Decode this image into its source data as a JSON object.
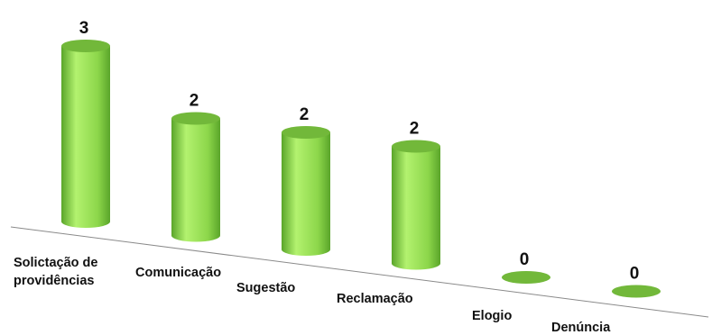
{
  "chart_data": {
    "type": "bar",
    "title": "",
    "xlabel": "",
    "ylabel": "",
    "ylim": [
      0,
      3
    ],
    "grid": false,
    "legend": "none",
    "categories": [
      "Solictação de providências",
      "Comunicação",
      "Sugestão",
      "Reclamação",
      "Elogio",
      "Denúncia"
    ],
    "category_lines": [
      [
        "Solictação de",
        "providências"
      ],
      [
        "Comunicação"
      ],
      [
        "Sugestão"
      ],
      [
        "Reclamação"
      ],
      [
        "Elogio"
      ],
      [
        "Denúncia"
      ]
    ],
    "values": [
      3,
      2,
      2,
      2,
      0,
      0
    ],
    "value_labels": [
      "3",
      "2",
      "2",
      "2",
      "0",
      "0"
    ],
    "colors": {
      "bar_body": "#8cd64a",
      "bar_highlight": "#b3f26f",
      "bar_shadow": "#5aa52a",
      "bar_top": "#72b83a",
      "axis": "#8a8a8a"
    }
  }
}
